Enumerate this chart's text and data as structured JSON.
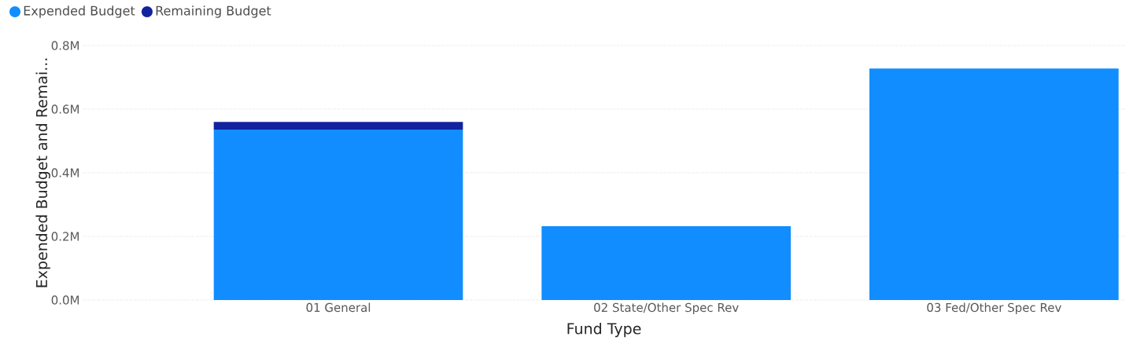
{
  "chart_data": {
    "type": "bar",
    "stacked": true,
    "xlabel": "Fund Type",
    "ylabel": "Expended Budget and Remai...",
    "categories": [
      "01 General",
      "02 State/Other Spec Rev",
      "03 Fed/Other Spec Rev"
    ],
    "series": [
      {
        "name": "Expended Budget",
        "color": "#118dff",
        "values": [
          536000,
          232000,
          728000
        ]
      },
      {
        "name": "Remaining Budget",
        "color": "#12239e",
        "values": [
          24000,
          0,
          0
        ]
      }
    ],
    "ylim": [
      0,
      800000
    ],
    "yticks": [
      {
        "value": 0,
        "label": "0.0M"
      },
      {
        "value": 200000,
        "label": "0.2M"
      },
      {
        "value": 400000,
        "label": "0.4M"
      },
      {
        "value": 600000,
        "label": "0.6M"
      },
      {
        "value": 800000,
        "label": "0.8M"
      }
    ],
    "grid": "y",
    "legend": "top left"
  }
}
